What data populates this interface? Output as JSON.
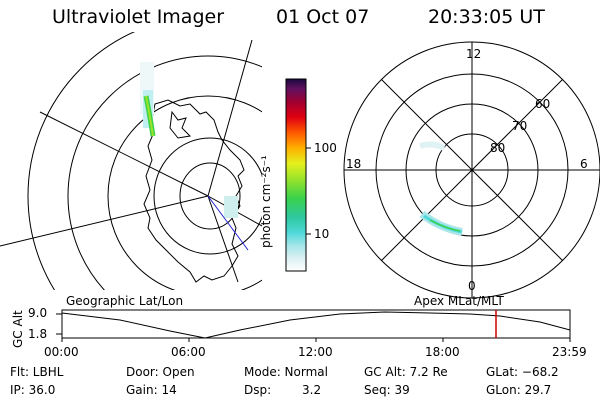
{
  "header": {
    "instrument": "Ultraviolet Imager",
    "date": "01 Oct 07",
    "time": "20:33:05 UT"
  },
  "colorbar": {
    "unit_label": "photon cm⁻²s⁻¹",
    "ticks": [
      "100",
      "10"
    ]
  },
  "polar_plot": {
    "mlt_labels": [
      "12",
      "18",
      "6",
      "0"
    ],
    "lat_labels": [
      "60",
      "70",
      "80"
    ]
  },
  "altitude_plot": {
    "ylabel": "GC Alt",
    "yticks": [
      "9.0",
      "1.8"
    ],
    "left_caption": "Geographic Lat/Lon",
    "right_caption": "Apex MLat/MLT",
    "xticks": [
      "00:00",
      "06:00",
      "12:00",
      "18:00",
      "23:59"
    ],
    "marker_color": "#cc0000"
  },
  "footer": {
    "filter": "Flt: LBHL",
    "ip": "IP: 36.0",
    "door": "Door: Open",
    "gain": "Gain: 14",
    "mode": "Mode: Normal",
    "dsp_label": "Dsp:",
    "dsp_value": "3.2",
    "gc_alt": "GC Alt: 7.2 Re",
    "seq": "Seq: 39",
    "glat": "GLat: −68.2",
    "glon": "GLon: 29.7"
  }
}
